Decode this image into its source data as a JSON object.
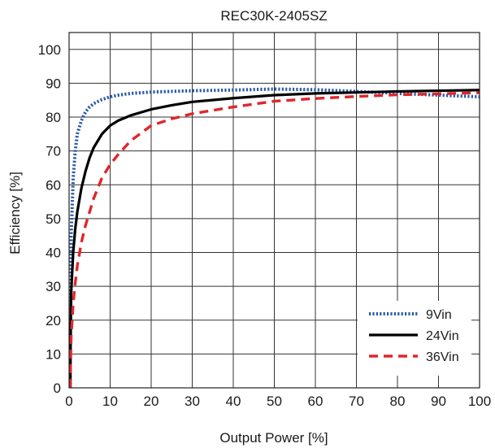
{
  "chart_data": {
    "type": "line",
    "title": "REC30K-2405SZ",
    "xlabel": "Output Power [%]",
    "ylabel": "Efficiency [%]",
    "xlim": [
      0,
      100
    ],
    "ylim": [
      0,
      105
    ],
    "x_ticks": [
      0,
      10,
      20,
      30,
      40,
      50,
      60,
      70,
      80,
      90,
      100
    ],
    "y_ticks": [
      0,
      10,
      20,
      30,
      40,
      50,
      60,
      70,
      80,
      90,
      100
    ],
    "grid": true,
    "legend_position": "bottom-right",
    "series": [
      {
        "name": "9Vin",
        "color": "#2a5aa6",
        "style": "dotted",
        "x": [
          0.3,
          0.5,
          1,
          1.5,
          2,
          3,
          4,
          5,
          6,
          8,
          10,
          12,
          15,
          20,
          25,
          30,
          40,
          50,
          60,
          70,
          80,
          90,
          100
        ],
        "y": [
          20,
          45,
          62,
          70,
          75,
          79,
          81.5,
          83,
          84,
          85.2,
          86,
          86.5,
          87,
          87.4,
          87.6,
          87.8,
          88,
          88.3,
          88.1,
          87.6,
          87,
          86.5,
          86
        ]
      },
      {
        "name": "24Vin",
        "color": "#000000",
        "style": "solid",
        "x": [
          0.3,
          0.5,
          1,
          1.5,
          2,
          3,
          4,
          5,
          6,
          8,
          10,
          12,
          15,
          20,
          25,
          30,
          40,
          50,
          60,
          70,
          80,
          90,
          100
        ],
        "y": [
          5,
          28,
          40,
          47,
          52,
          59,
          64,
          68,
          71,
          75,
          77.5,
          79,
          80.5,
          82.3,
          83.5,
          84.5,
          85.6,
          86.5,
          87,
          87.3,
          87.6,
          87.8,
          88
        ]
      },
      {
        "name": "36Vin",
        "color": "#e0262b",
        "style": "dashed",
        "x": [
          0.3,
          0.5,
          1,
          1.5,
          2,
          3,
          4,
          5,
          6,
          8,
          10,
          12,
          15,
          20,
          25,
          30,
          40,
          50,
          60,
          70,
          80,
          90,
          100
        ],
        "y": [
          3,
          15,
          25,
          31,
          36,
          43,
          48,
          52,
          56,
          62,
          66,
          69,
          73,
          77.5,
          79.5,
          81,
          83,
          84.7,
          85.5,
          86.1,
          86.6,
          86.9,
          87.2
        ]
      }
    ]
  }
}
